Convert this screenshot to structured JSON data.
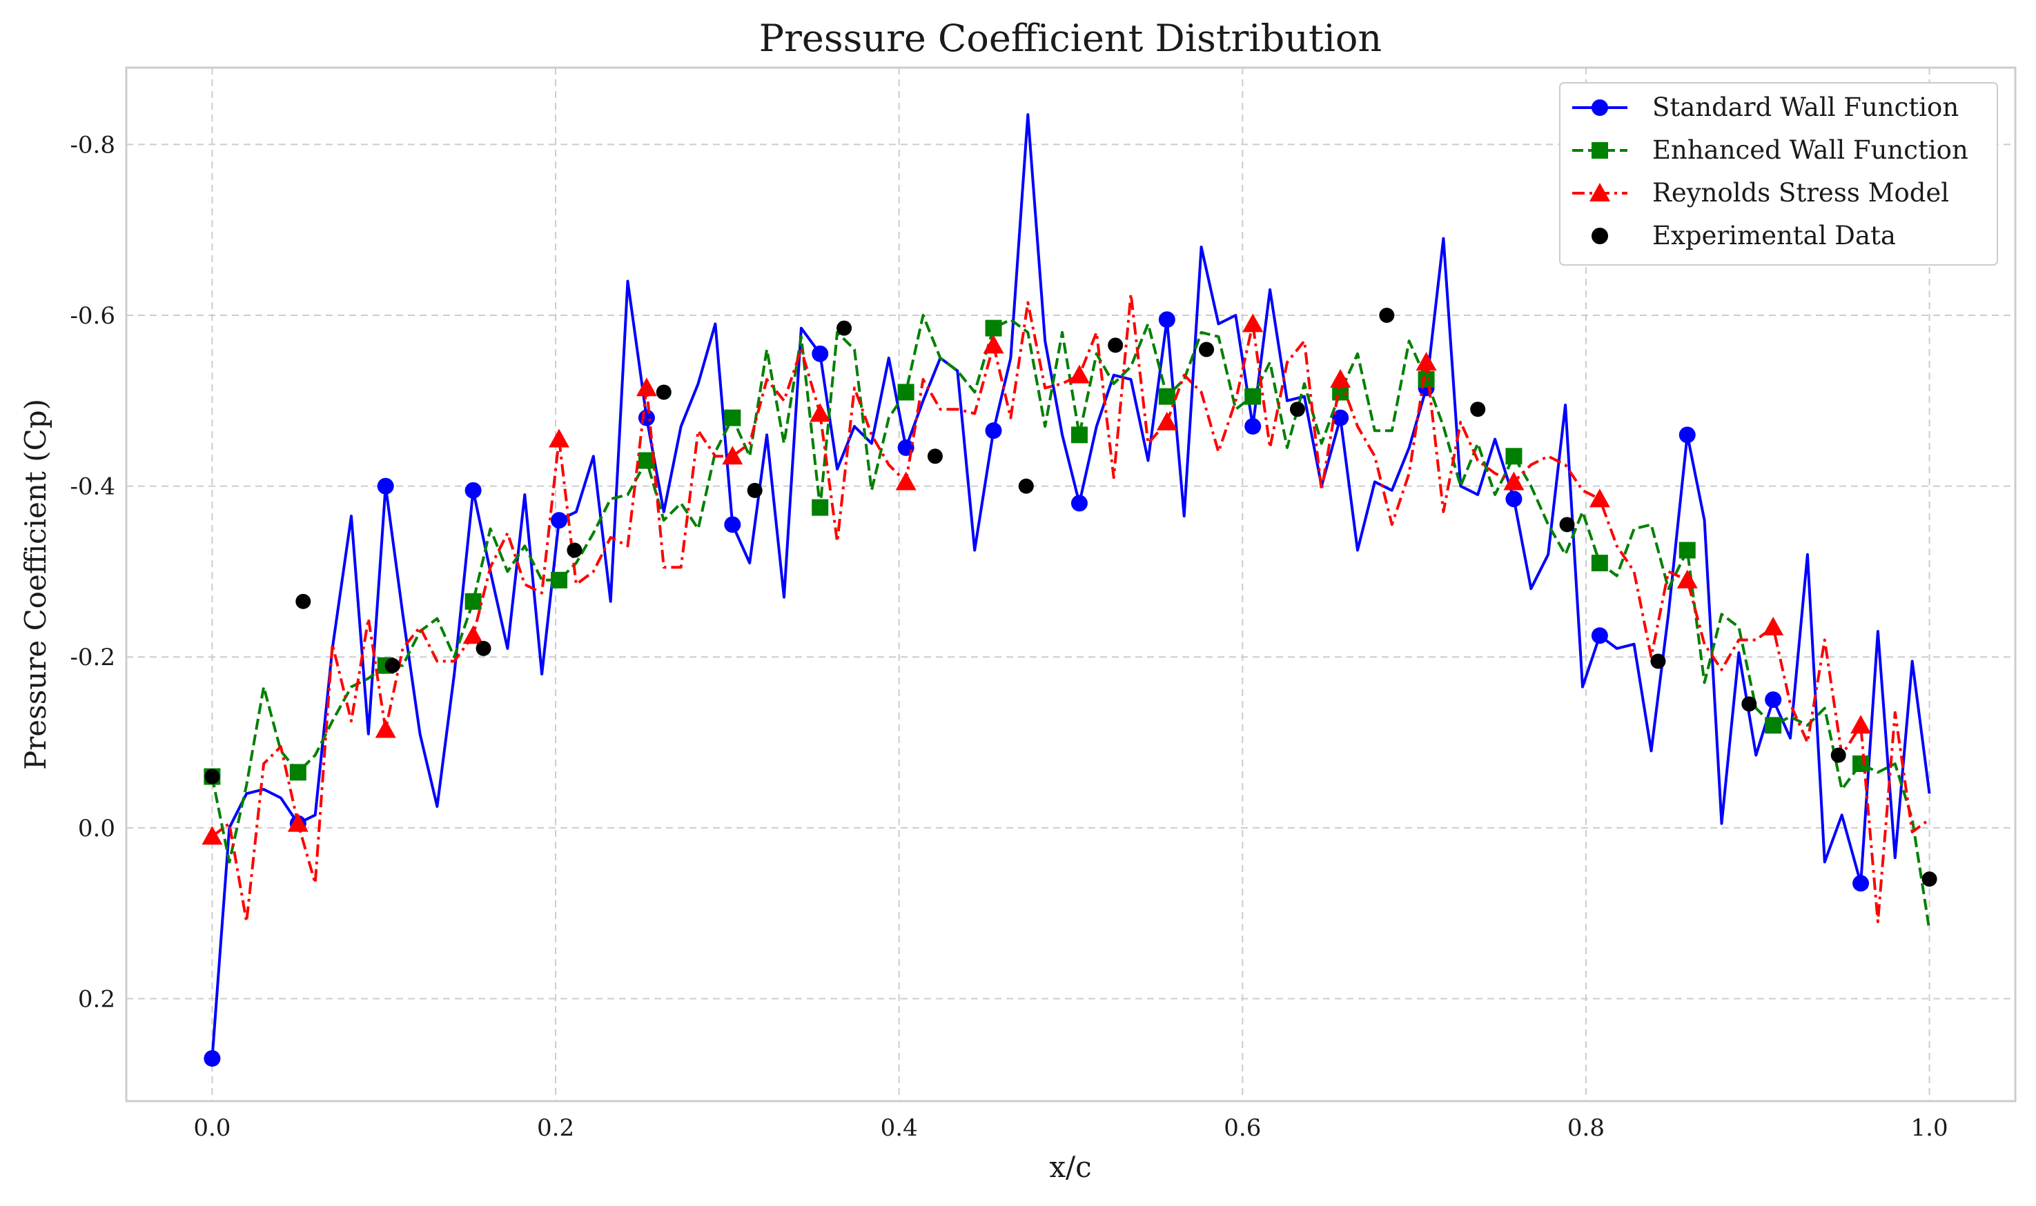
{
  "chart_data": {
    "type": "line",
    "title": "Pressure Coefficient Distribution",
    "xlabel": "x/c",
    "ylabel": "Pressure Coefficient (Cp)",
    "xlim": [
      -0.05,
      1.05
    ],
    "ylim": [
      0.32,
      -0.89
    ],
    "y_inverted": true,
    "grid": true,
    "legend_position": "top-right",
    "xticks": [
      0.0,
      0.2,
      0.4,
      0.6,
      0.8,
      1.0
    ],
    "xtick_labels": [
      "0.0",
      "0.2",
      "0.4",
      "0.6",
      "0.8",
      "1.0"
    ],
    "yticks": [
      -0.8,
      -0.6,
      -0.4,
      -0.2,
      0.0,
      0.2
    ],
    "ytick_labels": [
      "-0.8",
      "-0.6",
      "-0.4",
      "-0.2",
      "0.0",
      "0.2"
    ],
    "series": [
      {
        "name": "Standard Wall Function",
        "color": "#0000ff",
        "linestyle": "solid",
        "marker": "circle",
        "x": [
          0.0,
          0.01,
          0.02,
          0.03,
          0.04,
          0.05,
          0.06,
          0.07,
          0.081,
          0.091,
          0.101,
          0.111,
          0.121,
          0.131,
          0.141,
          0.152,
          0.162,
          0.172,
          0.182,
          0.192,
          0.202,
          0.212,
          0.222,
          0.232,
          0.242,
          0.253,
          0.263,
          0.273,
          0.283,
          0.293,
          0.303,
          0.313,
          0.323,
          0.333,
          0.343,
          0.354,
          0.364,
          0.374,
          0.384,
          0.394,
          0.404,
          0.414,
          0.424,
          0.434,
          0.444,
          0.455,
          0.465,
          0.475,
          0.485,
          0.495,
          0.505,
          0.515,
          0.525,
          0.535,
          0.545,
          0.556,
          0.566,
          0.576,
          0.586,
          0.596,
          0.606,
          0.616,
          0.626,
          0.636,
          0.646,
          0.657,
          0.667,
          0.677,
          0.687,
          0.697,
          0.707,
          0.717,
          0.727,
          0.737,
          0.747,
          0.758,
          0.768,
          0.778,
          0.788,
          0.798,
          0.808,
          0.818,
          0.828,
          0.838,
          0.848,
          0.859,
          0.869,
          0.879,
          0.889,
          0.899,
          0.909,
          0.919,
          0.929,
          0.939,
          0.949,
          0.96,
          0.97,
          0.98,
          0.99,
          1.0
        ],
        "y": [
          0.27,
          0.0,
          -0.04,
          -0.045,
          -0.035,
          -0.005,
          -0.015,
          -0.21,
          -0.365,
          -0.11,
          -0.4,
          -0.25,
          -0.11,
          -0.025,
          -0.18,
          -0.395,
          -0.3,
          -0.21,
          -0.39,
          -0.18,
          -0.36,
          -0.37,
          -0.435,
          -0.265,
          -0.64,
          -0.48,
          -0.37,
          -0.47,
          -0.52,
          -0.59,
          -0.355,
          -0.31,
          -0.46,
          -0.27,
          -0.585,
          -0.555,
          -0.42,
          -0.47,
          -0.45,
          -0.55,
          -0.445,
          -0.5,
          -0.55,
          -0.535,
          -0.325,
          -0.465,
          -0.55,
          -0.835,
          -0.57,
          -0.46,
          -0.38,
          -0.47,
          -0.53,
          -0.525,
          -0.43,
          -0.595,
          -0.365,
          -0.68,
          -0.59,
          -0.6,
          -0.47,
          -0.63,
          -0.5,
          -0.505,
          -0.4,
          -0.48,
          -0.325,
          -0.405,
          -0.395,
          -0.445,
          -0.515,
          -0.69,
          -0.4,
          -0.39,
          -0.455,
          -0.385,
          -0.28,
          -0.32,
          -0.495,
          -0.165,
          -0.225,
          -0.21,
          -0.215,
          -0.09,
          -0.25,
          -0.46,
          -0.36,
          -0.005,
          -0.205,
          -0.085,
          -0.15,
          -0.105,
          -0.32,
          0.04,
          -0.015,
          0.065,
          -0.23,
          0.035,
          -0.195,
          -0.04
        ]
      },
      {
        "name": "Enhanced Wall Function",
        "color": "#008000",
        "linestyle": "dashed",
        "marker": "square",
        "x": [
          0.0,
          0.01,
          0.02,
          0.03,
          0.04,
          0.05,
          0.06,
          0.07,
          0.081,
          0.091,
          0.101,
          0.111,
          0.121,
          0.131,
          0.141,
          0.152,
          0.162,
          0.172,
          0.182,
          0.192,
          0.202,
          0.212,
          0.222,
          0.232,
          0.242,
          0.253,
          0.263,
          0.273,
          0.283,
          0.293,
          0.303,
          0.313,
          0.323,
          0.333,
          0.343,
          0.354,
          0.364,
          0.374,
          0.384,
          0.394,
          0.404,
          0.414,
          0.424,
          0.434,
          0.444,
          0.455,
          0.465,
          0.475,
          0.485,
          0.495,
          0.505,
          0.515,
          0.525,
          0.535,
          0.545,
          0.556,
          0.566,
          0.576,
          0.586,
          0.596,
          0.606,
          0.616,
          0.626,
          0.636,
          0.646,
          0.657,
          0.667,
          0.677,
          0.687,
          0.697,
          0.707,
          0.717,
          0.727,
          0.737,
          0.747,
          0.758,
          0.768,
          0.778,
          0.788,
          0.798,
          0.808,
          0.818,
          0.828,
          0.838,
          0.848,
          0.859,
          0.869,
          0.879,
          0.889,
          0.899,
          0.909,
          0.919,
          0.929,
          0.939,
          0.949,
          0.96,
          0.97,
          0.98,
          0.99,
          1.0
        ],
        "y": [
          -0.06,
          0.04,
          -0.05,
          -0.165,
          -0.09,
          -0.065,
          -0.085,
          -0.125,
          -0.165,
          -0.175,
          -0.19,
          -0.19,
          -0.23,
          -0.245,
          -0.2,
          -0.265,
          -0.35,
          -0.3,
          -0.33,
          -0.29,
          -0.29,
          -0.31,
          -0.345,
          -0.385,
          -0.39,
          -0.43,
          -0.36,
          -0.38,
          -0.35,
          -0.44,
          -0.48,
          -0.435,
          -0.56,
          -0.45,
          -0.575,
          -0.375,
          -0.58,
          -0.56,
          -0.395,
          -0.48,
          -0.51,
          -0.6,
          -0.55,
          -0.535,
          -0.51,
          -0.585,
          -0.595,
          -0.58,
          -0.47,
          -0.58,
          -0.46,
          -0.555,
          -0.52,
          -0.54,
          -0.59,
          -0.505,
          -0.525,
          -0.58,
          -0.575,
          -0.49,
          -0.505,
          -0.545,
          -0.445,
          -0.52,
          -0.45,
          -0.51,
          -0.555,
          -0.465,
          -0.465,
          -0.57,
          -0.525,
          -0.47,
          -0.4,
          -0.45,
          -0.39,
          -0.435,
          -0.4,
          -0.355,
          -0.32,
          -0.37,
          -0.31,
          -0.295,
          -0.35,
          -0.355,
          -0.28,
          -0.325,
          -0.17,
          -0.25,
          -0.235,
          -0.14,
          -0.12,
          -0.13,
          -0.12,
          -0.14,
          -0.045,
          -0.075,
          -0.065,
          -0.075,
          -0.01,
          0.12
        ]
      },
      {
        "name": "Reynolds Stress Model",
        "color": "#ff0000",
        "linestyle": "dashdot",
        "marker": "triangle",
        "x": [
          0.0,
          0.01,
          0.02,
          0.03,
          0.04,
          0.05,
          0.06,
          0.07,
          0.081,
          0.091,
          0.101,
          0.111,
          0.121,
          0.131,
          0.141,
          0.152,
          0.162,
          0.172,
          0.182,
          0.192,
          0.202,
          0.212,
          0.222,
          0.232,
          0.242,
          0.253,
          0.263,
          0.273,
          0.283,
          0.293,
          0.303,
          0.313,
          0.323,
          0.333,
          0.343,
          0.354,
          0.364,
          0.374,
          0.384,
          0.394,
          0.404,
          0.414,
          0.424,
          0.434,
          0.444,
          0.455,
          0.465,
          0.475,
          0.485,
          0.495,
          0.505,
          0.515,
          0.525,
          0.535,
          0.545,
          0.556,
          0.566,
          0.576,
          0.586,
          0.596,
          0.606,
          0.616,
          0.626,
          0.636,
          0.646,
          0.657,
          0.667,
          0.677,
          0.687,
          0.697,
          0.707,
          0.717,
          0.727,
          0.737,
          0.747,
          0.758,
          0.768,
          0.778,
          0.788,
          0.798,
          0.808,
          0.818,
          0.828,
          0.838,
          0.848,
          0.859,
          0.869,
          0.879,
          0.889,
          0.899,
          0.909,
          0.919,
          0.929,
          0.939,
          0.949,
          0.96,
          0.97,
          0.98,
          0.99,
          1.0
        ],
        "y": [
          0.01,
          -0.005,
          0.11,
          -0.075,
          -0.095,
          -0.005,
          0.065,
          -0.215,
          -0.125,
          -0.245,
          -0.115,
          -0.21,
          -0.235,
          -0.195,
          -0.195,
          -0.225,
          -0.305,
          -0.345,
          -0.285,
          -0.275,
          -0.455,
          -0.285,
          -0.3,
          -0.34,
          -0.33,
          -0.515,
          -0.305,
          -0.305,
          -0.465,
          -0.435,
          -0.435,
          -0.45,
          -0.525,
          -0.5,
          -0.56,
          -0.485,
          -0.335,
          -0.515,
          -0.46,
          -0.425,
          -0.405,
          -0.525,
          -0.49,
          -0.49,
          -0.485,
          -0.565,
          -0.48,
          -0.615,
          -0.515,
          -0.52,
          -0.53,
          -0.58,
          -0.41,
          -0.625,
          -0.45,
          -0.475,
          -0.53,
          -0.51,
          -0.44,
          -0.5,
          -0.59,
          -0.445,
          -0.545,
          -0.57,
          -0.395,
          -0.525,
          -0.47,
          -0.435,
          -0.355,
          -0.415,
          -0.545,
          -0.37,
          -0.475,
          -0.43,
          -0.415,
          -0.405,
          -0.425,
          -0.435,
          -0.425,
          -0.395,
          -0.385,
          -0.33,
          -0.3,
          -0.2,
          -0.3,
          -0.29,
          -0.215,
          -0.185,
          -0.22,
          -0.22,
          -0.235,
          -0.145,
          -0.1,
          -0.22,
          -0.085,
          -0.12,
          0.11,
          -0.135,
          0.005,
          -0.01
        ]
      },
      {
        "name": "Experimental Data",
        "color": "#000000",
        "linestyle": "none",
        "marker": "circle",
        "x": [
          0.0,
          0.053,
          0.105,
          0.158,
          0.211,
          0.263,
          0.316,
          0.368,
          0.421,
          0.474,
          0.526,
          0.579,
          0.632,
          0.684,
          0.737,
          0.789,
          0.842,
          0.895,
          0.947,
          1.0
        ],
        "y": [
          -0.06,
          -0.265,
          -0.19,
          -0.21,
          -0.325,
          -0.51,
          -0.395,
          -0.585,
          -0.435,
          -0.4,
          -0.565,
          -0.56,
          -0.49,
          -0.6,
          -0.49,
          -0.355,
          -0.195,
          -0.145,
          -0.085,
          0.06
        ]
      }
    ]
  }
}
